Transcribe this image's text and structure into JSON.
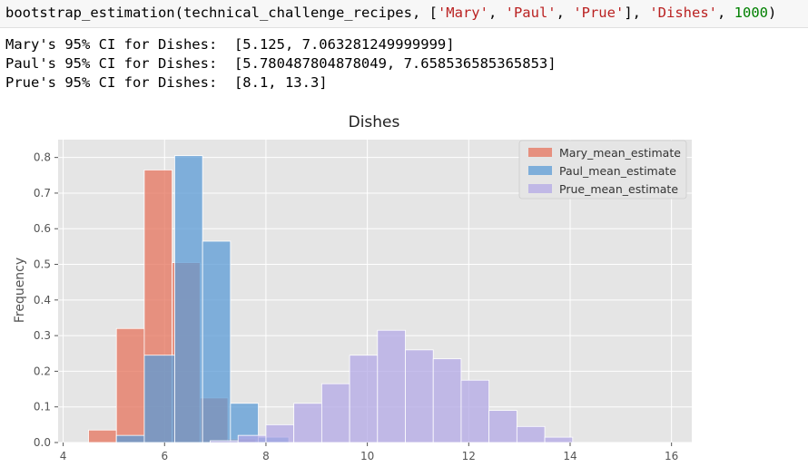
{
  "cell": {
    "input": {
      "func": "bootstrap_estimation",
      "open_paren": "(",
      "arg1": "technical_challenge_recipes",
      "comma_space": ", ",
      "lbracket": "[",
      "name1": "'Mary'",
      "name2": "'Paul'",
      "name3": "'Prue'",
      "rbracket": "]",
      "col_str": "'Dishes'",
      "num": "1000",
      "close_paren": ")"
    },
    "output_lines": [
      "Mary's 95% CI for Dishes:  [5.125, 7.063281249999999]",
      "Paul's 95% CI for Dishes:  [5.780487804878049, 7.658536585365853]",
      "Prue's 95% CI for Dishes:  [8.1, 13.3]"
    ]
  },
  "chart_data": {
    "type": "bar",
    "title": "Dishes",
    "xlabel": "",
    "ylabel": "Frequency",
    "xlim": [
      3.9,
      16.4
    ],
    "ylim": [
      0,
      0.85
    ],
    "xticks": [
      4,
      6,
      8,
      10,
      12,
      14,
      16
    ],
    "yticks": [
      0.0,
      0.1,
      0.2,
      0.3,
      0.4,
      0.5,
      0.6,
      0.7,
      0.8
    ],
    "ytick_labels": [
      "0.0",
      "0.1",
      "0.2",
      "0.3",
      "0.4",
      "0.5",
      "0.6",
      "0.7",
      "0.8"
    ],
    "grid": true,
    "legend_position": "top-right",
    "series": [
      {
        "name": "Mary_mean_estimate",
        "color": "#e5735c",
        "bins": [
          {
            "x0": 4.5,
            "x1": 5.05,
            "y": 0.035
          },
          {
            "x0": 5.05,
            "x1": 5.6,
            "y": 0.32
          },
          {
            "x0": 5.6,
            "x1": 6.15,
            "y": 0.765
          },
          {
            "x0": 6.15,
            "x1": 6.7,
            "y": 0.505
          },
          {
            "x0": 6.7,
            "x1": 7.25,
            "y": 0.125
          },
          {
            "x0": 7.25,
            "x1": 7.8,
            "y": 0.01
          }
        ]
      },
      {
        "name": "Paul_mean_estimate",
        "color": "#5b9bd5",
        "bins": [
          {
            "x0": 5.05,
            "x1": 5.6,
            "y": 0.02
          },
          {
            "x0": 5.6,
            "x1": 6.2,
            "y": 0.245
          },
          {
            "x0": 6.2,
            "x1": 6.75,
            "y": 0.805
          },
          {
            "x0": 6.75,
            "x1": 7.3,
            "y": 0.565
          },
          {
            "x0": 7.3,
            "x1": 7.85,
            "y": 0.11
          },
          {
            "x0": 7.85,
            "x1": 8.45,
            "y": 0.015
          }
        ]
      },
      {
        "name": "Prue_mean_estimate",
        "color": "#b3a8e6",
        "bins": [
          {
            "x0": 6.9,
            "x1": 7.45,
            "y": 0.005
          },
          {
            "x0": 7.45,
            "x1": 8.0,
            "y": 0.02
          },
          {
            "x0": 8.0,
            "x1": 8.55,
            "y": 0.05
          },
          {
            "x0": 8.55,
            "x1": 9.1,
            "y": 0.11
          },
          {
            "x0": 9.1,
            "x1": 9.65,
            "y": 0.165
          },
          {
            "x0": 9.65,
            "x1": 10.2,
            "y": 0.245
          },
          {
            "x0": 10.2,
            "x1": 10.75,
            "y": 0.315
          },
          {
            "x0": 10.75,
            "x1": 11.3,
            "y": 0.26
          },
          {
            "x0": 11.3,
            "x1": 11.85,
            "y": 0.235
          },
          {
            "x0": 11.85,
            "x1": 12.4,
            "y": 0.175
          },
          {
            "x0": 12.4,
            "x1": 12.95,
            "y": 0.09
          },
          {
            "x0": 12.95,
            "x1": 13.5,
            "y": 0.045
          },
          {
            "x0": 13.5,
            "x1": 14.05,
            "y": 0.015
          }
        ]
      }
    ]
  }
}
